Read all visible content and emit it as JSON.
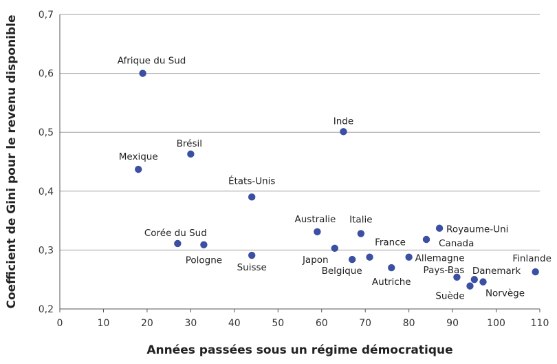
{
  "chart_data": {
    "type": "scatter",
    "title": "",
    "xlabel": "Années passées sous un régime démocratique",
    "ylabel": "Coefficient de Gini pour le revenu disponible",
    "xlim": [
      0,
      110
    ],
    "ylim": [
      0.2,
      0.7
    ],
    "xticks": [
      "0",
      "10",
      "20",
      "30",
      "40",
      "50",
      "60",
      "70",
      "80",
      "90",
      "100",
      "110"
    ],
    "yticks": [
      "0,2",
      "0,3",
      "0,4",
      "0,5",
      "0,6",
      "0,7"
    ],
    "grid": "horizontal",
    "marker_color": "#3b4fa3",
    "points": [
      {
        "label": "Afrique du Sud",
        "x": 19,
        "y": 0.6
      },
      {
        "label": "Mexique",
        "x": 18,
        "y": 0.437
      },
      {
        "label": "Brésil",
        "x": 30,
        "y": 0.463
      },
      {
        "label": "États-Unis",
        "x": 44,
        "y": 0.39
      },
      {
        "label": "Inde",
        "x": 65,
        "y": 0.501
      },
      {
        "label": "Corée du Sud",
        "x": 27,
        "y": 0.311
      },
      {
        "label": "Pologne",
        "x": 33,
        "y": 0.309
      },
      {
        "label": "Suisse",
        "x": 44,
        "y": 0.291
      },
      {
        "label": "Australie",
        "x": 59,
        "y": 0.331
      },
      {
        "label": "Japon",
        "x": 63,
        "y": 0.303
      },
      {
        "label": "Italie",
        "x": 69,
        "y": 0.328
      },
      {
        "label": "Belgique",
        "x": 67,
        "y": 0.284
      },
      {
        "label": "France",
        "x": 71,
        "y": 0.288
      },
      {
        "label": "Autriche",
        "x": 76,
        "y": 0.27
      },
      {
        "label": "Allemagne",
        "x": 80,
        "y": 0.288
      },
      {
        "label": "Canada",
        "x": 84,
        "y": 0.318
      },
      {
        "label": "Royaume-Uni",
        "x": 87,
        "y": 0.337
      },
      {
        "label": "Pays-Bas",
        "x": 91,
        "y": 0.254
      },
      {
        "label": "Suède",
        "x": 94,
        "y": 0.239
      },
      {
        "label": "Danemark",
        "x": 95,
        "y": 0.25
      },
      {
        "label": "Norvège",
        "x": 97,
        "y": 0.246
      },
      {
        "label": "Finlande",
        "x": 109,
        "y": 0.263
      }
    ]
  }
}
